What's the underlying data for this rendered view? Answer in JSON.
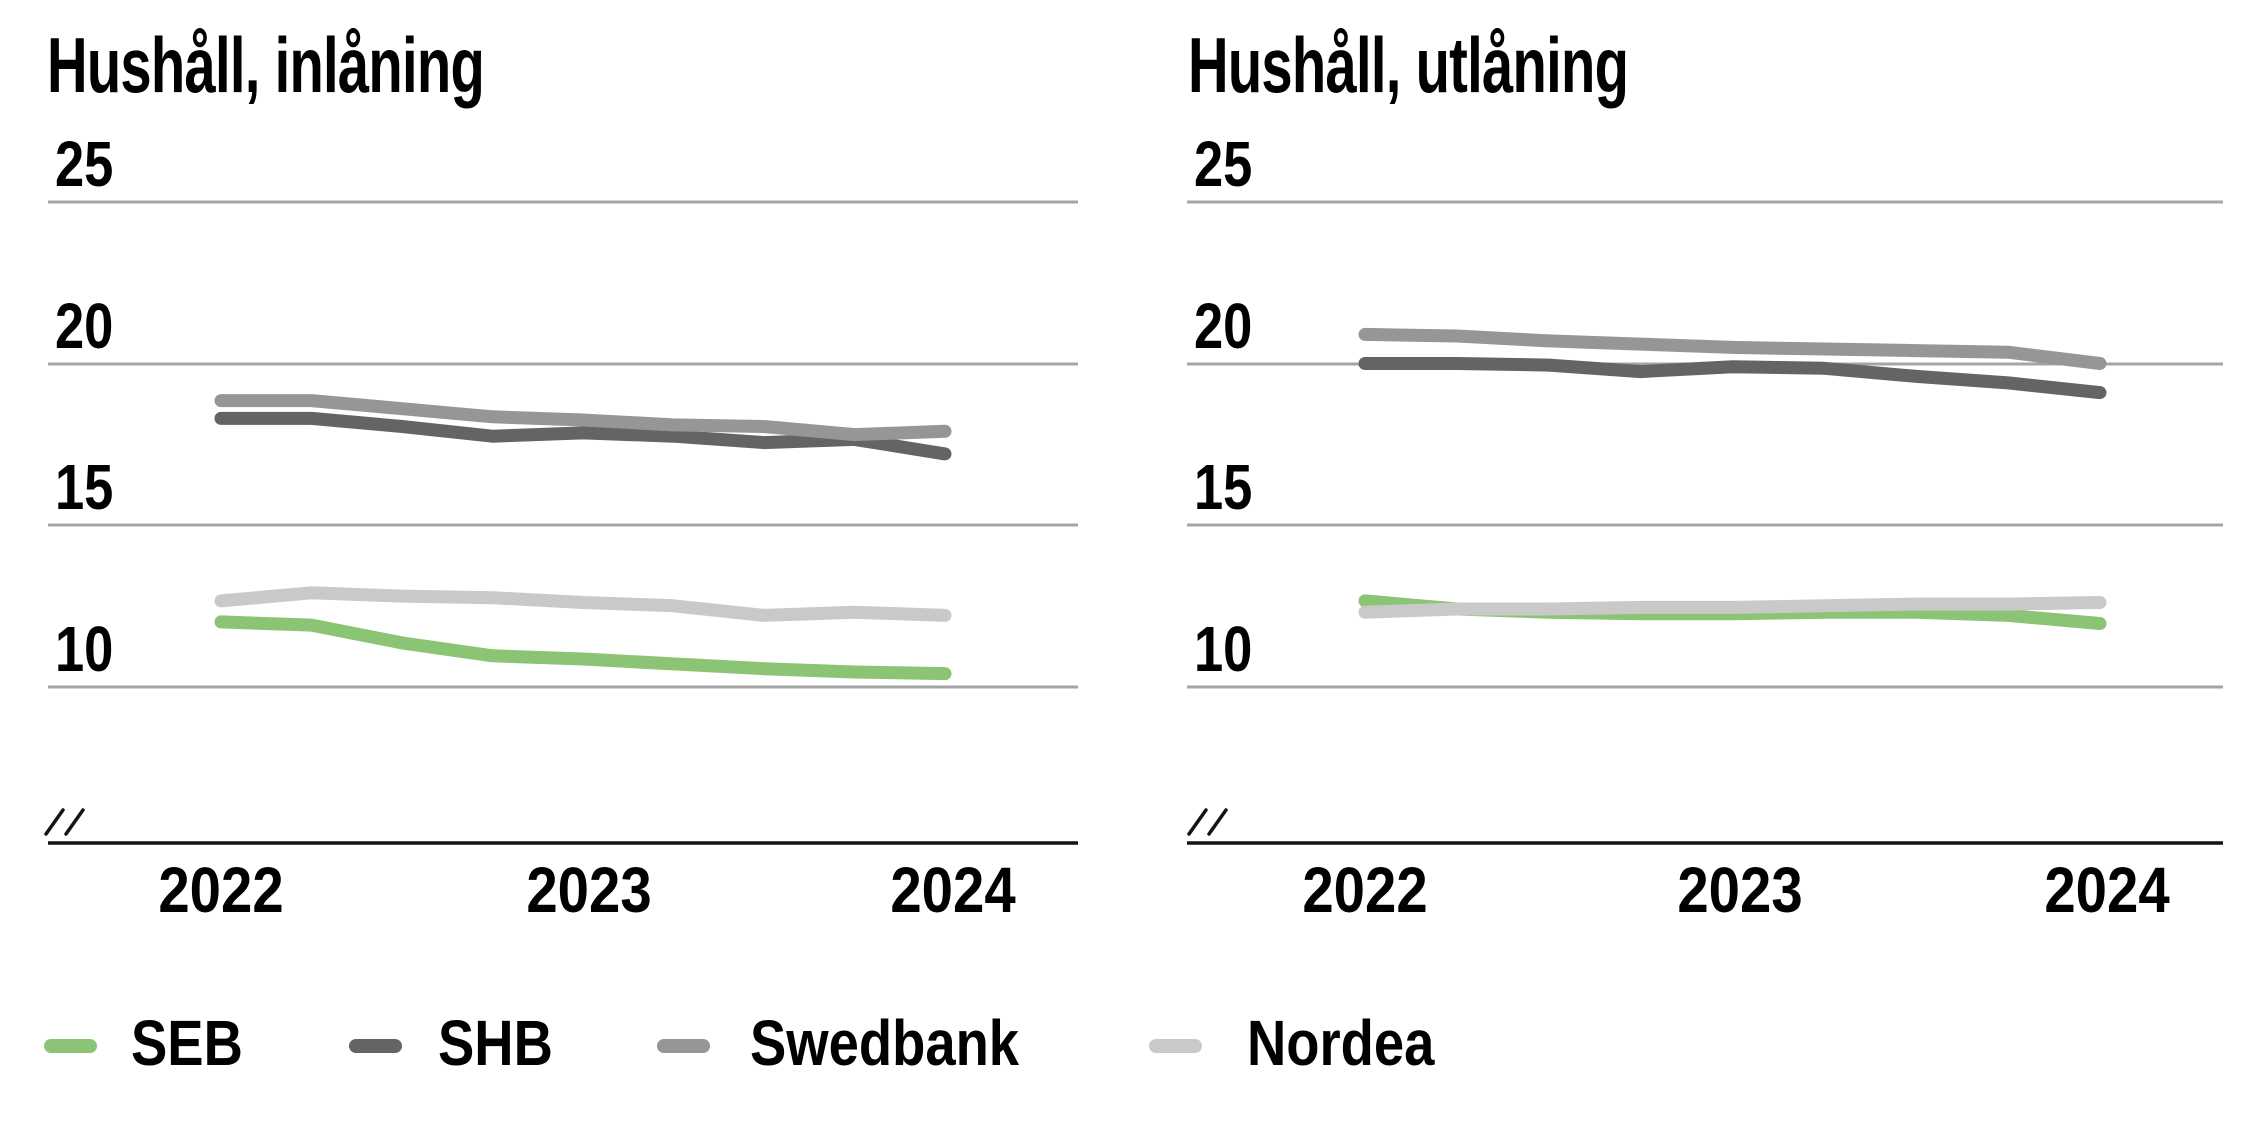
{
  "page": {
    "background": "#FFFFFF",
    "text_color": "#000000",
    "grid_color": "#A4A4A4",
    "axis_color": "#141414"
  },
  "chart_data": [
    {
      "type": "line",
      "title": "Hushåll, inlåning",
      "y_ticks": [
        "25",
        "20",
        "15",
        "10"
      ],
      "y_tick_values": [
        25,
        20,
        15,
        10
      ],
      "x_ticks": [
        "2022",
        "2023",
        "2024"
      ],
      "x_sampling": "quarterly, 2022Q1 to 2024Q1",
      "ylim_visible": [
        10,
        25
      ],
      "y_axis_break": true,
      "grid": true,
      "series": [
        {
          "name": "SEB",
          "color": "#8AC474",
          "values": [
            12.0,
            11.9,
            11.35,
            10.95,
            10.85,
            10.7,
            10.55,
            10.45,
            10.4
          ]
        },
        {
          "name": "SHB",
          "color": "#646464",
          "values": [
            18.3,
            18.3,
            18.05,
            17.75,
            17.85,
            17.75,
            17.55,
            17.65,
            17.2
          ]
        },
        {
          "name": "Swedbank",
          "color": "#969696",
          "values": [
            18.85,
            18.85,
            18.6,
            18.35,
            18.25,
            18.1,
            18.05,
            17.8,
            17.9
          ]
        },
        {
          "name": "Nordea",
          "color": "#C9C9C9",
          "values": [
            12.65,
            12.9,
            12.8,
            12.75,
            12.6,
            12.5,
            12.2,
            12.3,
            12.2
          ]
        }
      ]
    },
    {
      "type": "line",
      "title": "Hushåll, utlåning",
      "y_ticks": [
        "25",
        "20",
        "15",
        "10"
      ],
      "y_tick_values": [
        25,
        20,
        15,
        10
      ],
      "x_ticks": [
        "2022",
        "2023",
        "2024"
      ],
      "x_sampling": "quarterly, 2022Q1 to 2024Q1",
      "ylim_visible": [
        10,
        25
      ],
      "y_axis_break": true,
      "grid": true,
      "series": [
        {
          "name": "SEB",
          "color": "#8AC474",
          "values": [
            12.65,
            12.4,
            12.3,
            12.25,
            12.25,
            12.3,
            12.3,
            12.2,
            11.95
          ]
        },
        {
          "name": "SHB",
          "color": "#646464",
          "values": [
            20.0,
            20.0,
            19.95,
            19.75,
            19.9,
            19.85,
            19.6,
            19.4,
            19.1
          ]
        },
        {
          "name": "Swedbank",
          "color": "#969696",
          "values": [
            20.9,
            20.85,
            20.7,
            20.6,
            20.5,
            20.45,
            20.4,
            20.35,
            20.0
          ]
        },
        {
          "name": "Nordea",
          "color": "#C9C9C9",
          "values": [
            12.3,
            12.4,
            12.4,
            12.45,
            12.45,
            12.5,
            12.55,
            12.55,
            12.6
          ]
        }
      ]
    }
  ],
  "legend": {
    "items": [
      {
        "label": "SEB",
        "color": "#8AC474"
      },
      {
        "label": "SHB",
        "color": "#646464"
      },
      {
        "label": "Swedbank",
        "color": "#969696"
      },
      {
        "label": "Nordea",
        "color": "#C9C9C9"
      }
    ]
  }
}
